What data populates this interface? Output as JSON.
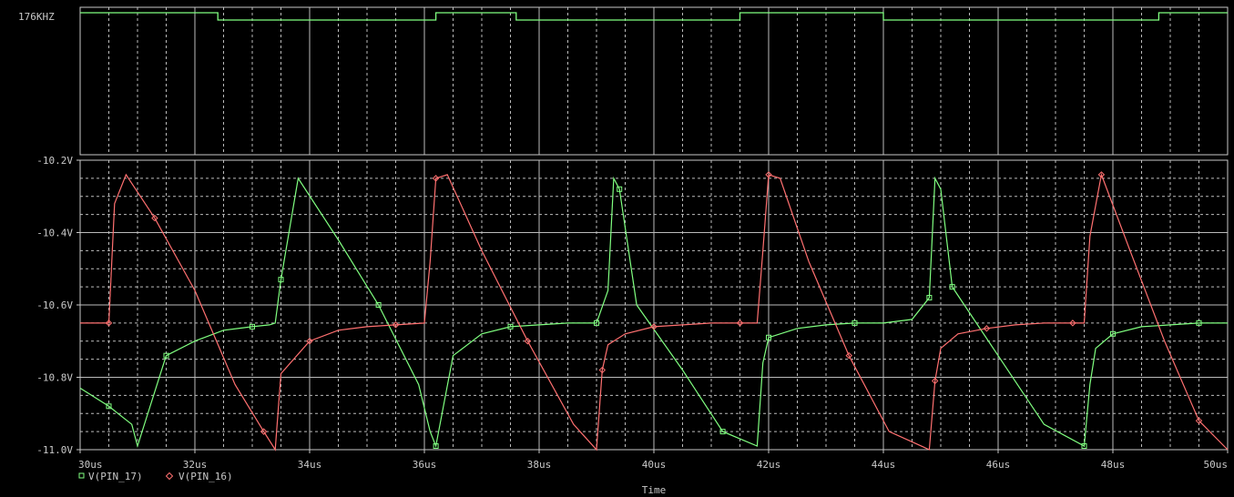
{
  "chart_data": [
    {
      "type": "line",
      "plot": "digital",
      "series_label": "176KHZ",
      "xlim": [
        30,
        50
      ],
      "x_unit": "us",
      "levels": [
        "high",
        "low"
      ],
      "edges": [
        30.0,
        32.4,
        36.2,
        37.6,
        41.5,
        44.0,
        48.8,
        50.0
      ],
      "edge_levels": [
        "high",
        "low",
        "high",
        "low",
        "high",
        "low",
        "high"
      ],
      "grid": true
    },
    {
      "type": "line",
      "plot": "analog",
      "title": "",
      "xlabel": "Time",
      "ylabel": "",
      "xlim": [
        30,
        50
      ],
      "ylim": [
        -11.0,
        -10.2
      ],
      "x_ticks": [
        "30us",
        "32us",
        "34us",
        "36us",
        "38us",
        "40us",
        "42us",
        "44us",
        "46us",
        "48us",
        "50us"
      ],
      "y_ticks": [
        "-10.2V",
        "-10.4V",
        "-10.6V",
        "-10.8V",
        "-11.0V"
      ],
      "grid": true,
      "legend_position": "bottom-left",
      "series": [
        {
          "name": "V(PIN_17)",
          "color": "#80ff80",
          "marker": "square",
          "x": [
            30.0,
            30.5,
            30.9,
            31.0,
            31.5,
            32.0,
            32.5,
            33.0,
            33.3,
            33.4,
            33.5,
            33.8,
            34.5,
            35.2,
            35.9,
            36.1,
            36.2,
            36.5,
            37.0,
            37.5,
            38.0,
            38.5,
            39.0,
            39.2,
            39.3,
            39.4,
            39.7,
            40.5,
            41.2,
            41.8,
            41.9,
            42.0,
            42.5,
            43.0,
            43.5,
            44.0,
            44.5,
            44.8,
            44.9,
            45.0,
            45.2,
            46.0,
            46.8,
            47.5,
            47.6,
            47.7,
            48.0,
            48.5,
            49.0,
            49.5,
            50.0
          ],
          "y": [
            -10.83,
            -10.88,
            -10.93,
            -10.99,
            -10.74,
            -10.7,
            -10.67,
            -10.66,
            -10.655,
            -10.65,
            -10.53,
            -10.25,
            -10.42,
            -10.6,
            -10.82,
            -10.95,
            -10.99,
            -10.74,
            -10.68,
            -10.66,
            -10.655,
            -10.65,
            -10.65,
            -10.56,
            -10.25,
            -10.28,
            -10.6,
            -10.78,
            -10.95,
            -10.99,
            -10.76,
            -10.69,
            -10.665,
            -10.655,
            -10.65,
            -10.65,
            -10.64,
            -10.58,
            -10.25,
            -10.28,
            -10.55,
            -10.74,
            -10.93,
            -10.99,
            -10.82,
            -10.72,
            -10.68,
            -10.66,
            -10.655,
            -10.65,
            -10.65
          ]
        },
        {
          "name": "V(PIN_16)",
          "color": "#ff7070",
          "marker": "diamond",
          "x": [
            30.0,
            30.5,
            30.6,
            30.8,
            31.3,
            32.0,
            32.7,
            33.2,
            33.4,
            33.5,
            34.0,
            34.5,
            35.0,
            35.5,
            36.0,
            36.1,
            36.2,
            36.4,
            37.0,
            37.8,
            38.6,
            39.0,
            39.1,
            39.2,
            39.5,
            40.0,
            40.5,
            41.0,
            41.5,
            41.8,
            41.9,
            42.0,
            42.2,
            42.7,
            43.4,
            44.1,
            44.8,
            44.9,
            45.0,
            45.3,
            45.8,
            46.3,
            46.8,
            47.3,
            47.5,
            47.6,
            47.8,
            48.3,
            48.9,
            49.5,
            50.0
          ],
          "y": [
            -10.65,
            -10.65,
            -10.32,
            -10.24,
            -10.36,
            -10.56,
            -10.82,
            -10.95,
            -11.0,
            -10.79,
            -10.7,
            -10.67,
            -10.66,
            -10.655,
            -10.65,
            -10.48,
            -10.25,
            -10.24,
            -10.45,
            -10.7,
            -10.93,
            -11.0,
            -10.78,
            -10.71,
            -10.68,
            -10.66,
            -10.655,
            -10.65,
            -10.65,
            -10.65,
            -10.45,
            -10.24,
            -10.25,
            -10.48,
            -10.74,
            -10.95,
            -11.0,
            -10.81,
            -10.72,
            -10.68,
            -10.665,
            -10.655,
            -10.65,
            -10.65,
            -10.65,
            -10.41,
            -10.24,
            -10.45,
            -10.7,
            -10.92,
            -11.0
          ]
        }
      ]
    }
  ]
}
